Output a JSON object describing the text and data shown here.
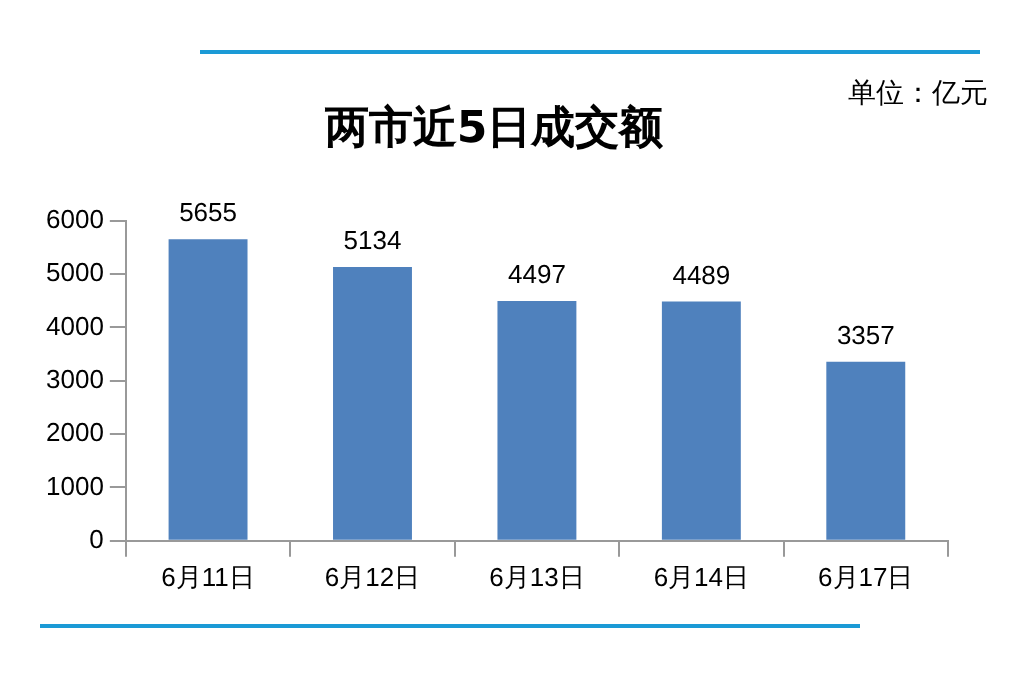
{
  "chart_data": {
    "type": "bar",
    "title": "两市近5日成交额",
    "annotations": [
      "单位：亿元"
    ],
    "categories": [
      "6月11日",
      "6月12日",
      "6月13日",
      "6月14日",
      "6月17日"
    ],
    "values": [
      5655,
      5134,
      4497,
      4489,
      3357
    ],
    "color": "#4f81bd",
    "ylim": [
      0,
      6000
    ],
    "yticks": [
      0,
      1000,
      2000,
      3000,
      4000,
      5000,
      6000
    ],
    "grid": false,
    "legend": false,
    "data_labels": true
  }
}
